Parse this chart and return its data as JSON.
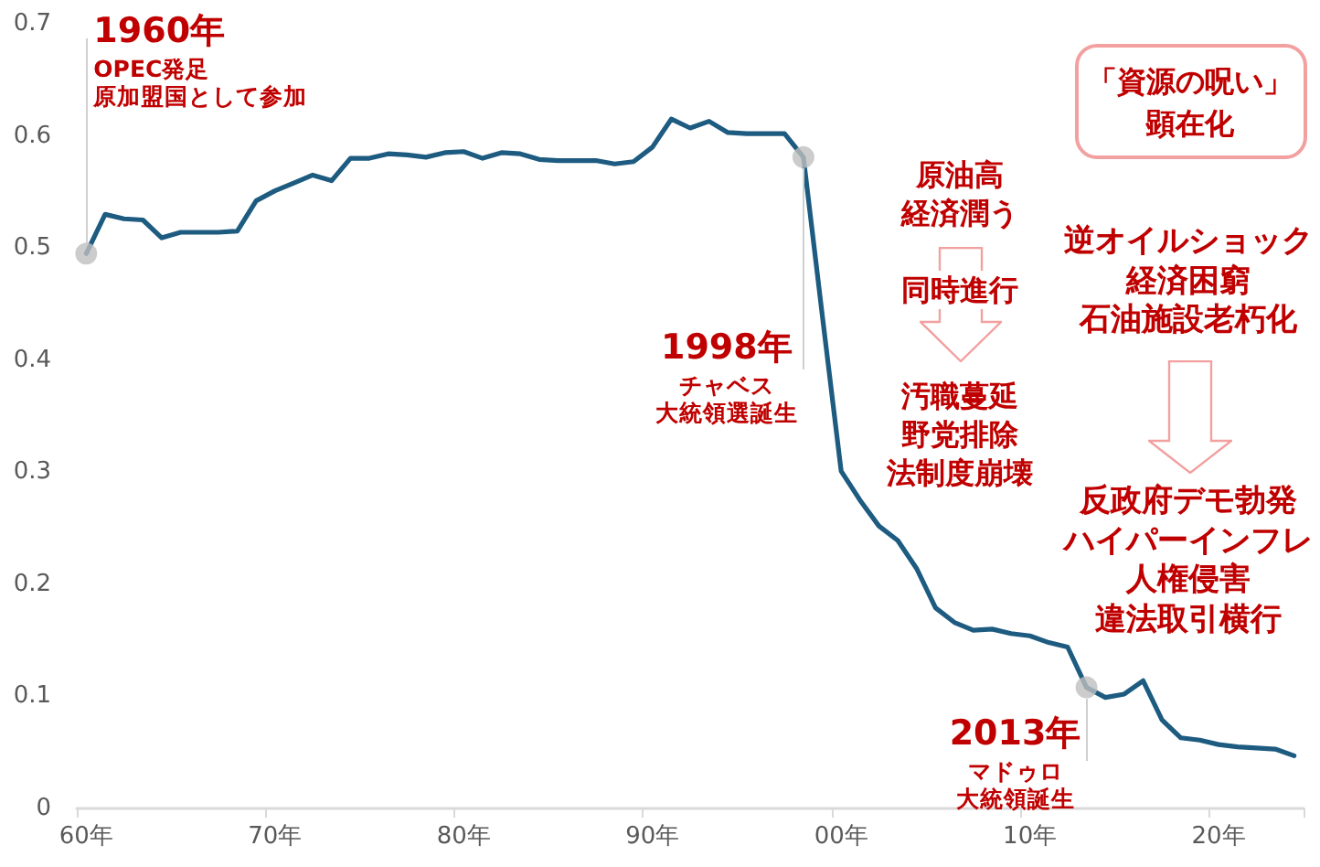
{
  "chart_data": {
    "type": "line",
    "marker": "none",
    "categories": [
      "60年",
      null,
      null,
      null,
      null,
      null,
      null,
      null,
      null,
      null,
      "70年",
      null,
      null,
      null,
      null,
      null,
      null,
      null,
      null,
      null,
      "80年",
      null,
      null,
      null,
      null,
      null,
      null,
      null,
      null,
      null,
      "90年",
      null,
      null,
      null,
      null,
      null,
      null,
      null,
      null,
      null,
      "00年",
      null,
      null,
      null,
      null,
      null,
      null,
      null,
      null,
      null,
      "10年",
      null,
      null,
      null,
      null,
      null,
      null,
      null,
      null,
      null,
      "20年",
      null,
      null,
      null,
      null
    ],
    "ylim": [
      0,
      0.7
    ],
    "yticks": [
      0,
      0.1,
      0.2,
      0.3,
      0.4,
      0.5,
      0.6,
      0.7
    ],
    "series": [
      {
        "color": "#1d5b80",
        "values": [
          0.495,
          0.53,
          0.526,
          0.525,
          0.509,
          0.514,
          0.514,
          0.514,
          0.515,
          0.542,
          0.551,
          0.558,
          0.565,
          0.56,
          0.58,
          0.58,
          0.584,
          0.583,
          0.581,
          0.585,
          0.586,
          0.58,
          0.585,
          0.584,
          0.579,
          0.578,
          0.578,
          0.578,
          0.575,
          0.577,
          0.59,
          0.615,
          0.607,
          0.613,
          0.603,
          0.602,
          0.602,
          0.602,
          0.581,
          0.44,
          0.301,
          0.275,
          0.252,
          0.239,
          0.214,
          0.179,
          0.166,
          0.159,
          0.16,
          0.156,
          0.154,
          0.148,
          0.144,
          0.108,
          0.099,
          0.102,
          0.114,
          0.079,
          0.063,
          0.061,
          0.057,
          0.055,
          0.054,
          0.053,
          0.047
        ]
      },
      {
        "type": "scatter",
        "marker": "circle",
        "color": "#bfbfbf",
        "values": [
          0.495,
          null,
          null,
          null,
          null,
          null,
          null,
          null,
          null,
          null,
          null,
          null,
          null,
          null,
          null,
          null,
          null,
          null,
          null,
          null,
          null,
          null,
          null,
          null,
          null,
          null,
          null,
          null,
          null,
          null,
          null,
          null,
          null,
          null,
          null,
          null,
          null,
          null,
          0.581,
          null,
          null,
          null,
          null,
          null,
          null,
          null,
          null,
          null,
          null,
          null,
          null,
          null,
          null,
          0.108,
          null,
          null,
          null,
          null,
          null,
          null,
          null,
          null,
          null,
          null,
          null
        ]
      }
    ],
    "annotations": [
      "1960年",
      "OPEC発足",
      "原加盟国として参加",
      "1998年",
      "チャベス",
      "大統領選誕生",
      "2013年",
      "マドゥロ",
      "大統領誕生",
      "「資源の呪い」",
      "顕在化",
      "原油高",
      "経済潤う",
      "同時進行",
      "汚職蔓延",
      "野党排除",
      "法制度崩壊",
      "逆オイルショック",
      "経済困窮",
      "石油施設老朽化",
      "反政府デモ勃発",
      "ハイパーインフレ",
      "人権侵害",
      "違法取引横行"
    ]
  }
}
